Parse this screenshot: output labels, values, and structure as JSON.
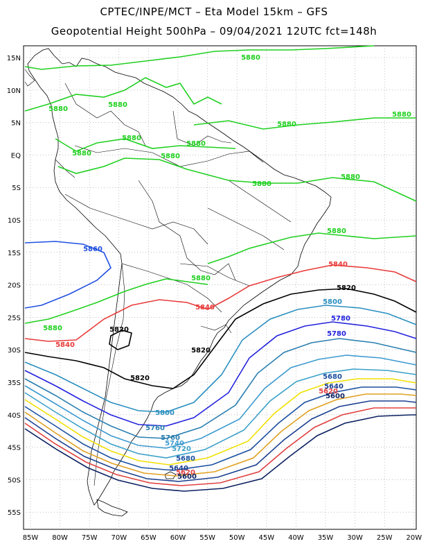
{
  "title_line1": "CPTEC/INPE/MCT –  Eta Model 15km – GFS",
  "title_line2": "Geopotential Height 500hPa – 09/04/2021 12UTC fct=148h",
  "lat_labels": [
    "15N",
    "10N",
    "5N",
    "EQ",
    "5S",
    "10S",
    "15S",
    "20S",
    "25S",
    "30S",
    "35S",
    "40S",
    "45S",
    "50S",
    "55S"
  ],
  "lon_labels": [
    "85W",
    "80W",
    "75W",
    "70W",
    "65W",
    "60W",
    "55W",
    "50W",
    "45W",
    "40W",
    "35W",
    "30W",
    "25W",
    "20W"
  ],
  "colors": {
    "c5880": "#1fd01f",
    "c5860_blue": "#1f4fe0",
    "c5840": "#e83a3a",
    "c5820": "#000000",
    "c5800": "#2a8fc0",
    "c5780": "#2222dd",
    "c5760": "#2a7fb0",
    "c5740": "#3c9ad0",
    "c5720": "#3aa0c8",
    "c5700": "#f0e000",
    "c5680": "#1a4fa0",
    "c5660": "#e0a020",
    "c5640": "#1a3f90",
    "c5620": "#e04040",
    "c5600": "#0a1f60",
    "coast": "#000000",
    "grid": "#888888"
  },
  "contour_labels": [
    {
      "text": "5880",
      "color": "c5880"
    },
    {
      "text": "5880",
      "color": "c5880"
    },
    {
      "text": "5880",
      "color": "c5880"
    },
    {
      "text": "5880",
      "color": "c5880"
    },
    {
      "text": "5880",
      "color": "c5880"
    },
    {
      "text": "5880",
      "color": "c5880"
    },
    {
      "text": "5880",
      "color": "c5880"
    },
    {
      "text": "5880",
      "color": "c5880"
    },
    {
      "text": "5880",
      "color": "c5880"
    },
    {
      "text": "5880",
      "color": "c5880"
    },
    {
      "text": "5880",
      "color": "c5880"
    },
    {
      "text": "5880",
      "color": "c5880"
    },
    {
      "text": "5880",
      "color": "c5880"
    },
    {
      "text": "5880",
      "color": "c5880"
    },
    {
      "text": "5860",
      "color": "c5860_blue"
    },
    {
      "text": "5840",
      "color": "c5840"
    },
    {
      "text": "5840",
      "color": "c5840"
    },
    {
      "text": "5840",
      "color": "c5840"
    },
    {
      "text": "5820",
      "color": "c5820"
    },
    {
      "text": "5820",
      "color": "c5820"
    },
    {
      "text": "5820",
      "color": "c5820"
    },
    {
      "text": "5820",
      "color": "c5820"
    },
    {
      "text": "5800",
      "color": "c5800"
    },
    {
      "text": "5800",
      "color": "c5800"
    },
    {
      "text": "5780",
      "color": "c5780"
    },
    {
      "text": "5760",
      "color": "c5760"
    },
    {
      "text": "5780",
      "color": "c5780"
    },
    {
      "text": "5760",
      "color": "c5760"
    },
    {
      "text": "5740",
      "color": "c5740"
    },
    {
      "text": "5720",
      "color": "c5720"
    },
    {
      "text": "5680",
      "color": "c5680"
    },
    {
      "text": "5640",
      "color": "c5640"
    },
    {
      "text": "5620",
      "color": "c5620"
    },
    {
      "text": "5600",
      "color": "c5600"
    },
    {
      "text": "5680",
      "color": "c5680"
    },
    {
      "text": "5640",
      "color": "c5640"
    },
    {
      "text": "5620",
      "color": "c5620"
    },
    {
      "text": "5600",
      "color": "c5600"
    }
  ]
}
